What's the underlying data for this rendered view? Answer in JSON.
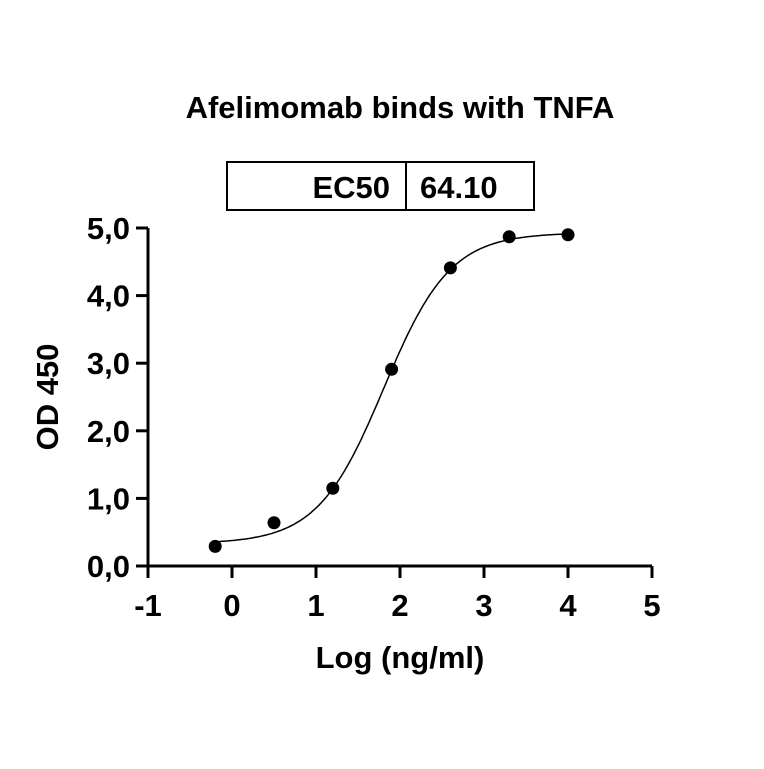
{
  "chart_data": {
    "type": "scatter",
    "title": "Afelimomab binds with TNFA",
    "xlabel": "Log (ng/ml)",
    "ylabel": "OD 450",
    "xlim": [
      -1,
      5
    ],
    "ylim": [
      0,
      5
    ],
    "x_ticks": [
      "-1",
      "0",
      "1",
      "2",
      "3",
      "4",
      "5"
    ],
    "y_ticks": [
      "0,0",
      "1,0",
      "2,0",
      "3,0",
      "4,0",
      "5,0"
    ],
    "grid": false,
    "points": {
      "x": [
        -0.2,
        0.5,
        1.2,
        1.9,
        2.6,
        3.3,
        4.0
      ],
      "y": [
        0.29,
        0.64,
        1.15,
        2.91,
        4.41,
        4.87,
        4.9
      ]
    },
    "fit": {
      "model": "4PL",
      "bottom": 0.33,
      "top": 4.93,
      "logEC50": 1.807,
      "hill": 1.1
    },
    "ec50_table": {
      "label": "EC50",
      "value": "64.10"
    },
    "colors": {
      "marks": "#000000"
    }
  }
}
